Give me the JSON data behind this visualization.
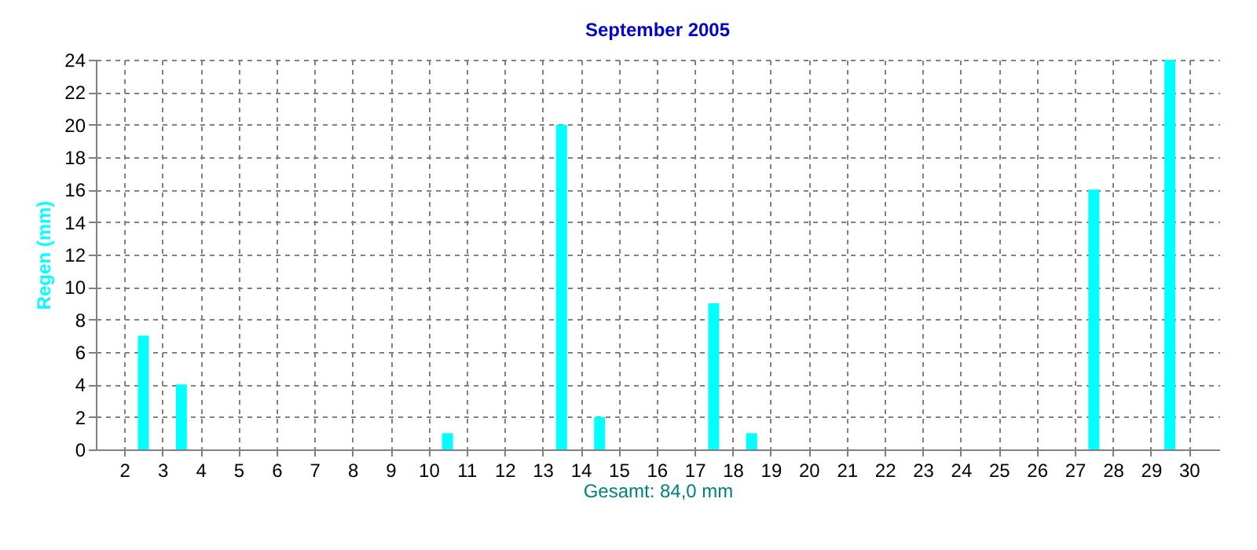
{
  "chart_data": {
    "type": "bar",
    "title": "September 2005",
    "xlabel": "Gesamt: 84,0 mm",
    "ylabel": "Regen  (mm)",
    "x": [
      1.5,
      2.5,
      3.5,
      4.5,
      5.5,
      6.5,
      7.5,
      8.5,
      9.5,
      10.5,
      11.5,
      12.5,
      13.5,
      14.5,
      15.5,
      16.5,
      17.5,
      18.5,
      19.5,
      20.5,
      21.5,
      22.5,
      23.5,
      24.5,
      25.5,
      26.5,
      27.5,
      28.5,
      29.5,
      30.5
    ],
    "series": [
      {
        "color": "#00ffff",
        "values": [
          0,
          7,
          4,
          0,
          0,
          0,
          0,
          0,
          0,
          1,
          0,
          0,
          20,
          2,
          0,
          0,
          9,
          1,
          0,
          0,
          0,
          0,
          0,
          0,
          0,
          0,
          16,
          0,
          24,
          0
        ]
      }
    ],
    "xlim": [
      1.25,
      30.8
    ],
    "xticks": [
      2,
      3,
      4,
      5,
      6,
      7,
      8,
      9,
      10,
      11,
      12,
      13,
      14,
      15,
      16,
      17,
      18,
      19,
      20,
      21,
      22,
      23,
      24,
      25,
      26,
      27,
      28,
      29,
      30
    ],
    "ylim": [
      0,
      24
    ],
    "yticks": [
      0,
      2,
      4,
      6,
      8,
      10,
      12,
      14,
      16,
      18,
      20,
      22,
      24
    ],
    "grid": true
  }
}
